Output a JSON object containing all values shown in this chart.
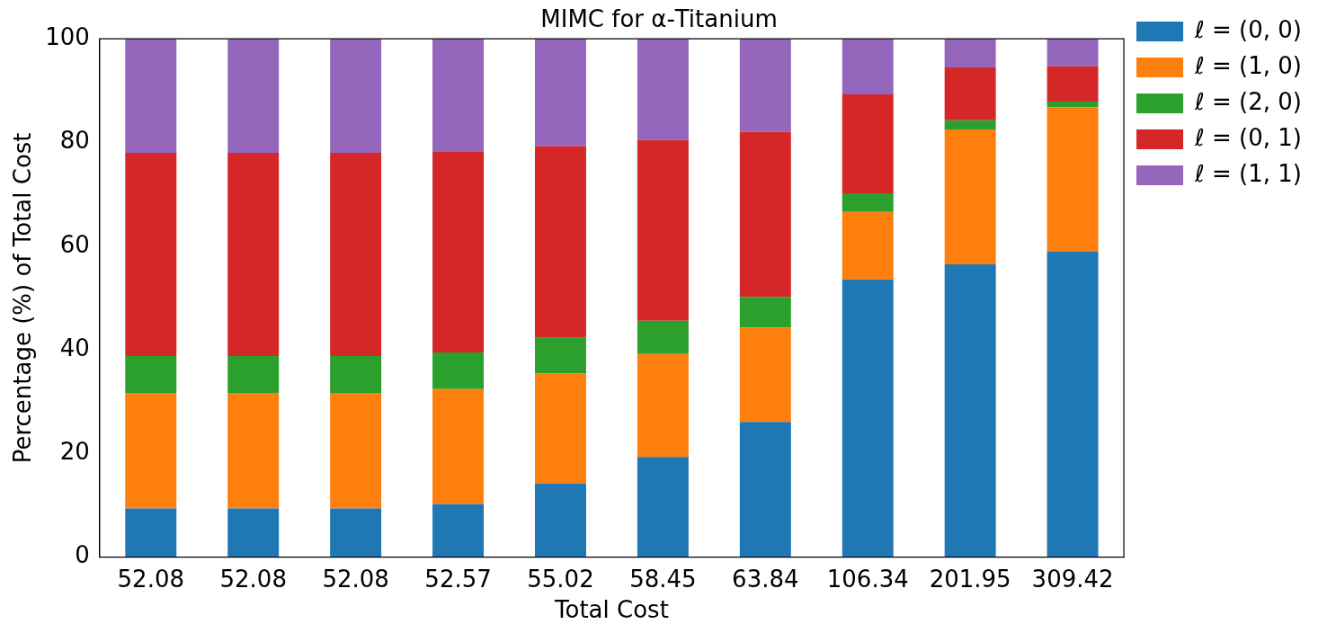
{
  "chart_data": {
    "type": "bar",
    "title": "MIMC for α-Titanium",
    "xlabel": "Total Cost",
    "ylabel": "Percentage (%) of Total Cost",
    "categories": [
      "52.08",
      "52.08",
      "52.08",
      "52.57",
      "55.02",
      "58.45",
      "63.84",
      "106.34",
      "201.95",
      "309.42"
    ],
    "stacked": true,
    "ylim": [
      0,
      100
    ],
    "yticks": [
      0,
      20,
      40,
      60,
      80,
      100
    ],
    "grid": false,
    "legend": "top right",
    "series": [
      {
        "name": "ℓ = (0, 0)",
        "color": "#1f77b4",
        "values": [
          9.4,
          9.4,
          9.4,
          10.2,
          14.2,
          19.3,
          26.1,
          53.6,
          56.5,
          59.0
        ]
      },
      {
        "name": "ℓ = (1, 0)",
        "color": "#ff7f0e",
        "values": [
          22.3,
          22.3,
          22.3,
          22.2,
          21.2,
          19.9,
          18.2,
          13.0,
          26.0,
          27.8
        ]
      },
      {
        "name": "ℓ = (2, 0)",
        "color": "#2ca02c",
        "values": [
          7.1,
          7.1,
          7.1,
          7.1,
          6.9,
          6.4,
          5.9,
          3.6,
          1.8,
          1.1
        ]
      },
      {
        "name": "ℓ = (0, 1)",
        "color": "#d62728",
        "values": [
          39.2,
          39.2,
          39.2,
          38.8,
          37.0,
          34.9,
          31.9,
          19.1,
          10.2,
          6.8
        ]
      },
      {
        "name": "ℓ = (1, 1)",
        "color": "#9467bd",
        "values": [
          22.0,
          22.0,
          22.0,
          21.7,
          20.7,
          19.5,
          17.9,
          10.7,
          5.5,
          5.3
        ]
      }
    ]
  }
}
